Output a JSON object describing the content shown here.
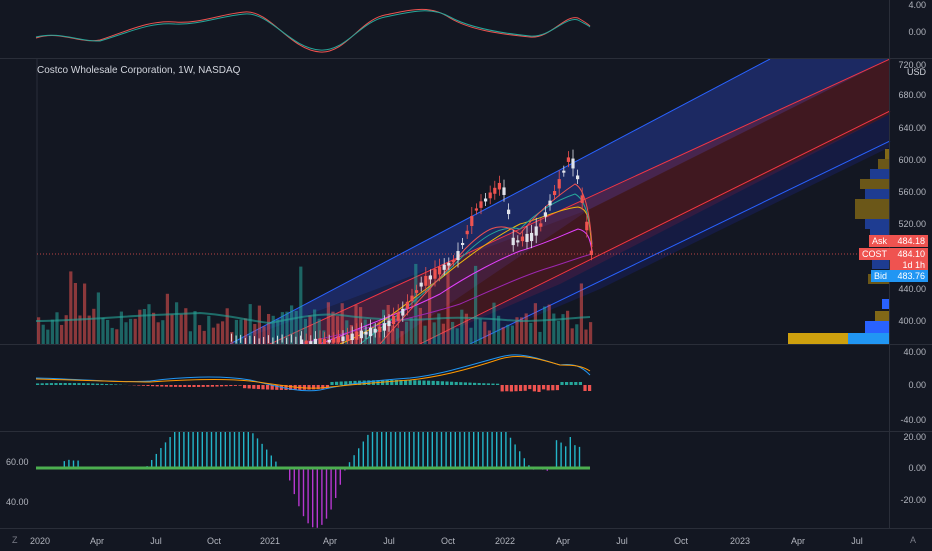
{
  "chart": {
    "title": "Costco Wholesale Corporation, 1W, NASDAQ",
    "currency": "USD"
  },
  "price_axis": {
    "ticks": [
      "720.00",
      "680.00",
      "640.00",
      "600.00",
      "560.00",
      "520.00",
      "440.00",
      "400.00"
    ]
  },
  "price_badges": {
    "ask_label": "Ask",
    "ask_value": "484.18",
    "last_label": "COST",
    "last_value": "484.10",
    "countdown": "1d 1h",
    "bid_label": "Bid",
    "bid_value": "483.76"
  },
  "top_axis": {
    "ticks": [
      "4.00",
      "0.00"
    ]
  },
  "macd_axis": {
    "ticks": [
      "40.00",
      "0.00",
      "-40.00"
    ]
  },
  "osc_axis": {
    "ticks": [
      "20.00",
      "0.00",
      "-20.00"
    ],
    "left_ticks": [
      "60.00",
      "40.00"
    ]
  },
  "time_axis": {
    "labels": [
      "2020",
      "Apr",
      "Jul",
      "Oct",
      "2021",
      "Apr",
      "Jul",
      "Oct",
      "2022",
      "Apr",
      "Jul",
      "Oct",
      "2023",
      "Apr",
      "Jul"
    ]
  },
  "bottom_bar": {
    "left_icon": "Z",
    "right_icon": "A"
  },
  "colors": {
    "background": "#131722",
    "up": "#26a69a",
    "down": "#ef5350",
    "channel_blue": "#2962ff",
    "channel_red": "#f23645"
  }
}
